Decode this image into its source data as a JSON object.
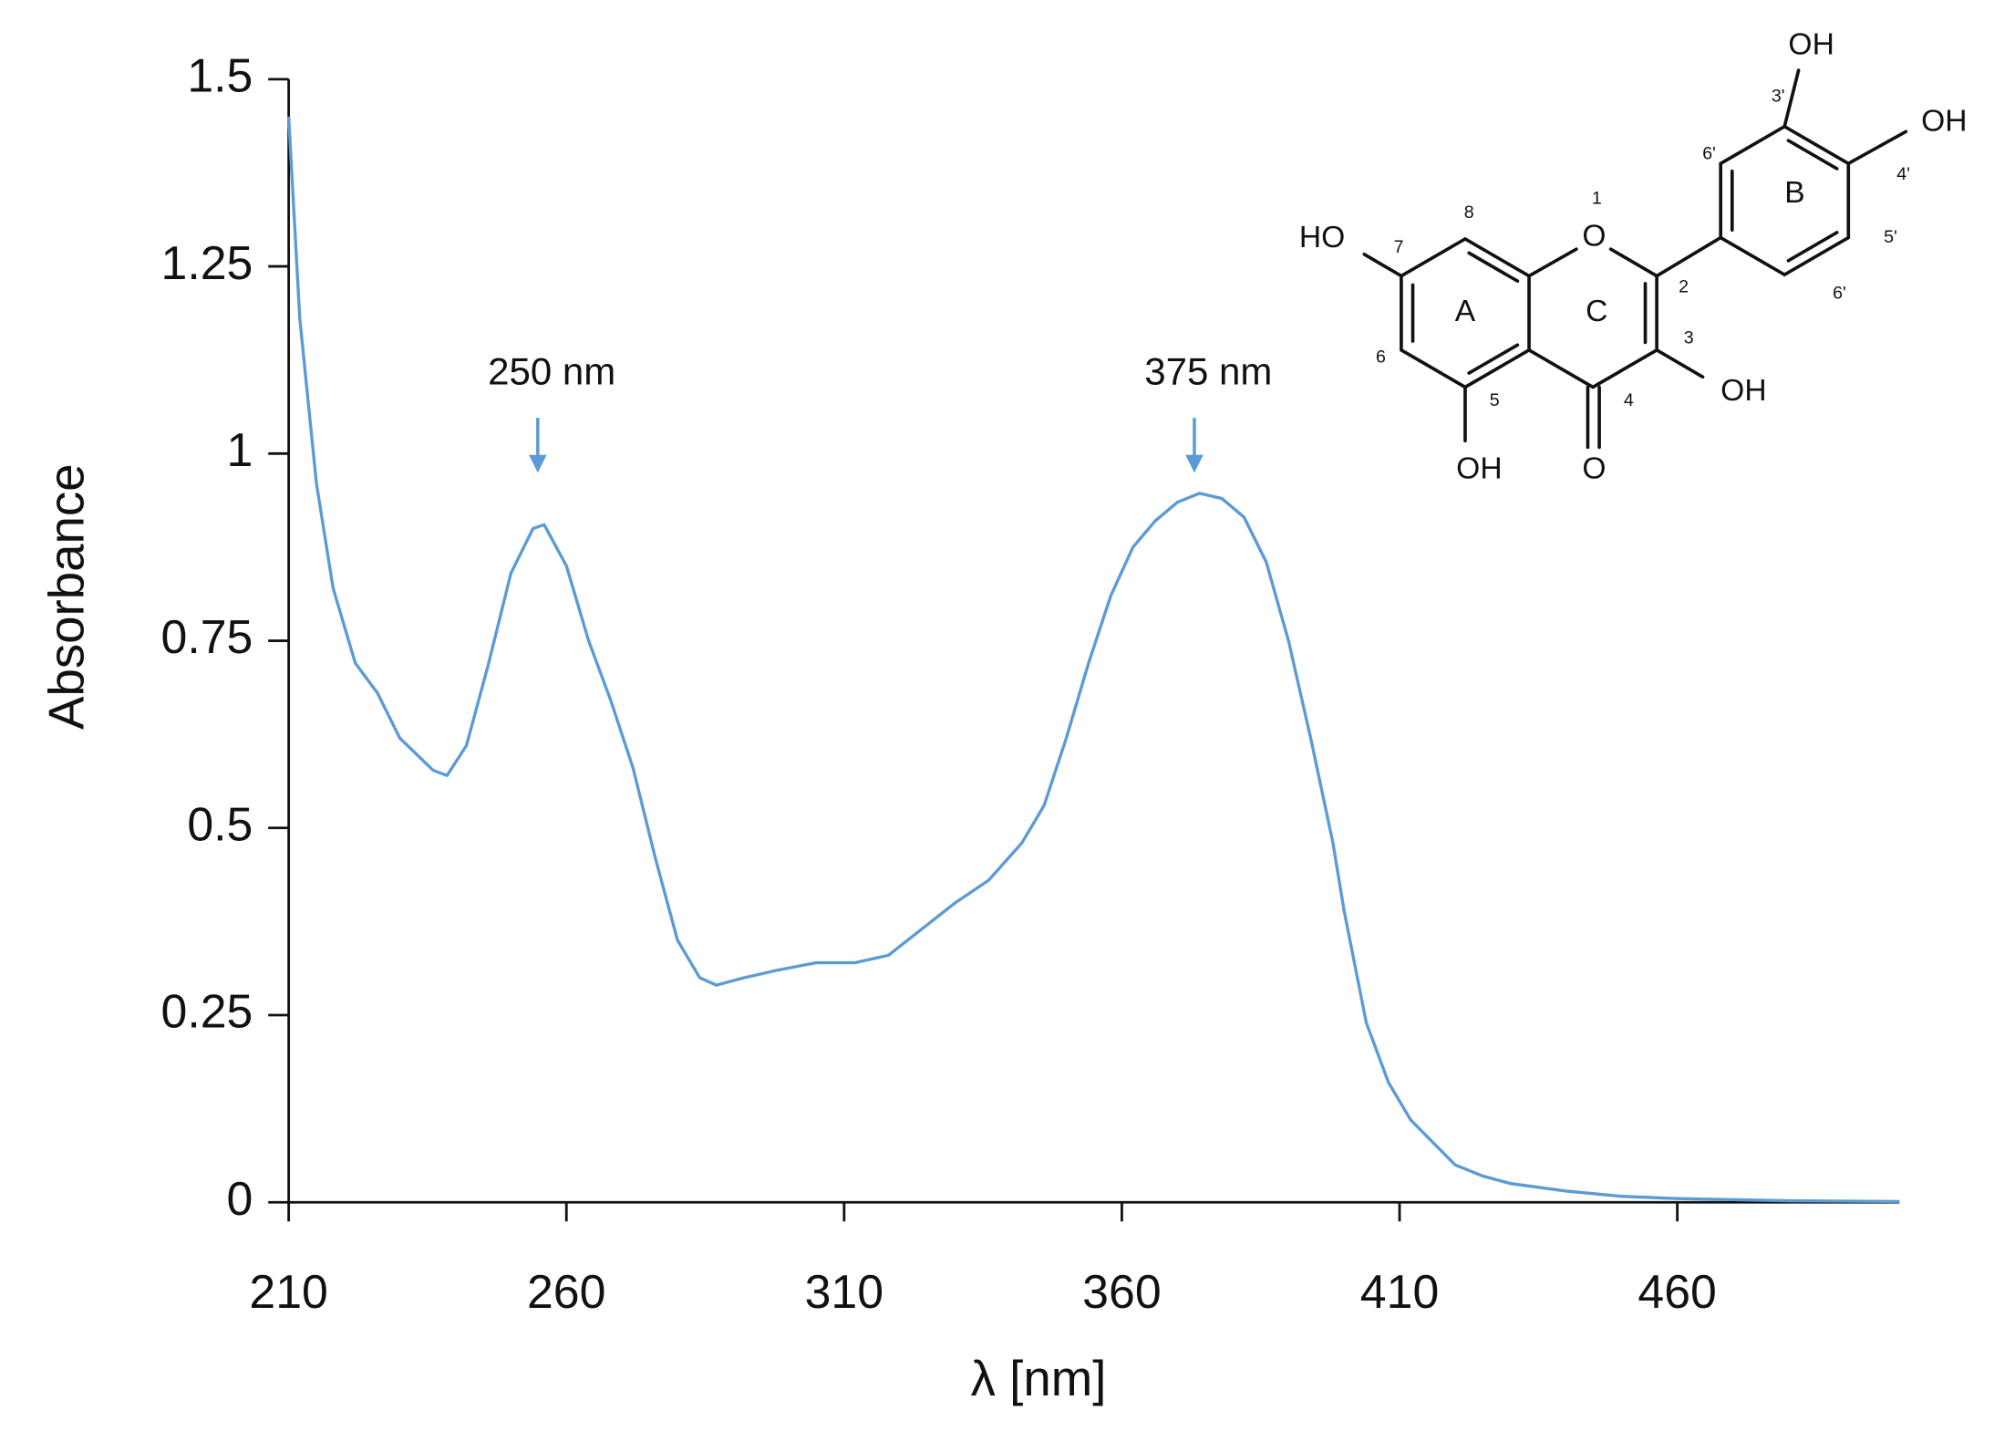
{
  "chart_data": {
    "type": "line",
    "x_label": "λ [nm]",
    "y_label": "Absorbance",
    "x": [
      210,
      212,
      215,
      218,
      222,
      226,
      230,
      236,
      238.5,
      242,
      246,
      250,
      254,
      256,
      260,
      264,
      268,
      272,
      276,
      280,
      284,
      287,
      292,
      298,
      305,
      312,
      318,
      324,
      330,
      336,
      342,
      346,
      350,
      354,
      358,
      362,
      366,
      370,
      374,
      378,
      382,
      386,
      390,
      394,
      398,
      400,
      404,
      408,
      412,
      416,
      420,
      425,
      430,
      440,
      450,
      460,
      480,
      500
    ],
    "values": [
      1.45,
      1.18,
      0.96,
      0.82,
      0.72,
      0.68,
      0.62,
      0.577,
      0.57,
      0.61,
      0.72,
      0.84,
      0.9,
      0.905,
      0.85,
      0.75,
      0.67,
      0.58,
      0.46,
      0.35,
      0.3,
      0.29,
      0.3,
      0.31,
      0.32,
      0.32,
      0.33,
      0.365,
      0.4,
      0.43,
      0.48,
      0.53,
      0.62,
      0.72,
      0.81,
      0.875,
      0.91,
      0.935,
      0.947,
      0.94,
      0.915,
      0.855,
      0.75,
      0.62,
      0.48,
      0.39,
      0.24,
      0.16,
      0.11,
      0.08,
      0.05,
      0.035,
      0.025,
      0.015,
      0.008,
      0.005,
      0.002,
      0.001
    ],
    "color": "#5b9bd5",
    "xlim": [
      210,
      500
    ],
    "xticks": [
      210,
      260,
      310,
      360,
      410,
      460
    ],
    "ylim": [
      0,
      1.5
    ],
    "yticks": [
      0,
      0.25,
      0.5,
      0.75,
      1,
      1.25,
      1.5
    ],
    "grid": false,
    "annotations": [
      "250 nm",
      "375 nm"
    ]
  },
  "structure": {
    "labels": [
      "OH",
      "OH",
      "HO",
      "OH",
      "OH",
      "O",
      "O",
      "1",
      "2",
      "3",
      "4",
      "5",
      "6",
      "7",
      "8",
      "3'",
      "4'",
      "5'",
      "6'",
      "6'",
      "A",
      "B",
      "C"
    ]
  }
}
